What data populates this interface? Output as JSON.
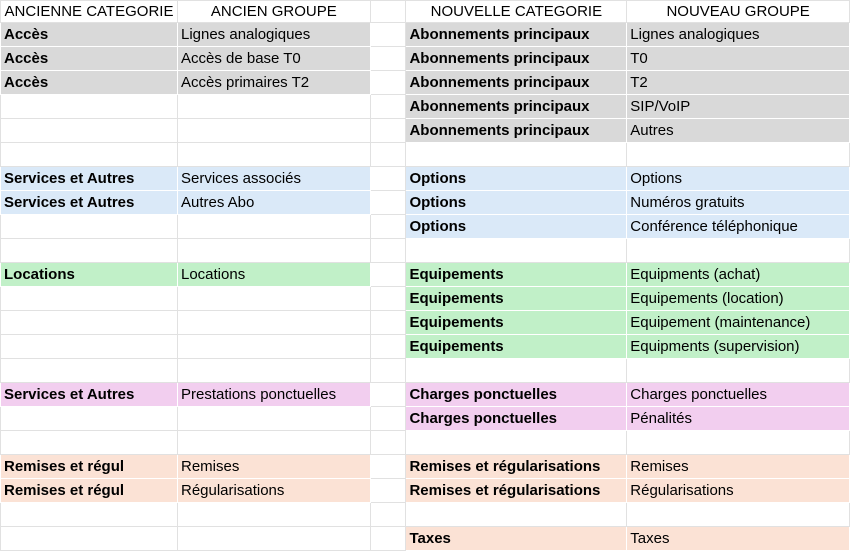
{
  "headers": {
    "old_category": "ANCIENNE CATEGORIE",
    "old_group": "ANCIEN GROUPE",
    "new_category": "NOUVELLE CATEGORIE",
    "new_group": "NOUVEAU GROUPE"
  },
  "colors": {
    "gray": "#d9d9d9",
    "blue": "#dae9f8",
    "green": "#c1f0c8",
    "pink": "#f2ceef",
    "orange": "#fbe2d5"
  },
  "rows": [
    {
      "old_category": "Accès",
      "old_group": "Lignes analogiques",
      "old_color": "gray",
      "new_category": "Abonnements principaux",
      "new_group": "Lignes analogiques",
      "new_color": "gray"
    },
    {
      "old_category": "Accès",
      "old_group": "Accès de base T0",
      "old_color": "gray",
      "new_category": "Abonnements principaux",
      "new_group": "T0",
      "new_color": "gray"
    },
    {
      "old_category": "Accès",
      "old_group": "Accès primaires T2",
      "old_color": "gray",
      "new_category": "Abonnements principaux",
      "new_group": "T2",
      "new_color": "gray"
    },
    {
      "new_category": "Abonnements principaux",
      "new_group": "SIP/VoIP",
      "new_color": "gray"
    },
    {
      "new_category": "Abonnements principaux",
      "new_group": "Autres",
      "new_color": "gray"
    },
    {},
    {
      "old_category": "Services et Autres",
      "old_group": "Services associés",
      "old_color": "blue",
      "new_category": "Options",
      "new_group": "Options",
      "new_color": "blue"
    },
    {
      "old_category": "Services et Autres",
      "old_group": "Autres Abo",
      "old_color": "blue",
      "new_category": "Options",
      "new_group": "Numéros gratuits",
      "new_color": "blue"
    },
    {
      "new_category": "Options",
      "new_group": "Conférence téléphonique",
      "new_color": "blue"
    },
    {},
    {
      "old_category": "Locations",
      "old_group": "Locations",
      "old_color": "green",
      "new_category": "Equipements",
      "new_group": "Equipments (achat)",
      "new_color": "green"
    },
    {
      "new_category": "Equipements",
      "new_group": "Equipements (location)",
      "new_color": "green"
    },
    {
      "new_category": "Equipements",
      "new_group": "Equipement (maintenance)",
      "new_color": "green"
    },
    {
      "new_category": "Equipements",
      "new_group": "Equipments (supervision)",
      "new_color": "green"
    },
    {},
    {
      "old_category": "Services et Autres",
      "old_group": "Prestations ponctuelles",
      "old_color": "pink",
      "new_category": "Charges ponctuelles",
      "new_group": "Charges ponctuelles",
      "new_color": "pink"
    },
    {
      "new_category": "Charges ponctuelles",
      "new_group": "Pénalités",
      "new_color": "pink"
    },
    {},
    {
      "old_category": "Remises et régul",
      "old_group": "Remises",
      "old_color": "orange",
      "new_category": "Remises et régularisations",
      "new_group": "Remises",
      "new_color": "orange"
    },
    {
      "old_category": "Remises et régul",
      "old_group": "Régularisations",
      "old_color": "orange",
      "new_category": "Remises et régularisations",
      "new_group": "Régularisations",
      "new_color": "orange"
    },
    {},
    {
      "new_category": "Taxes",
      "new_group": "Taxes",
      "new_color": "orange"
    }
  ]
}
